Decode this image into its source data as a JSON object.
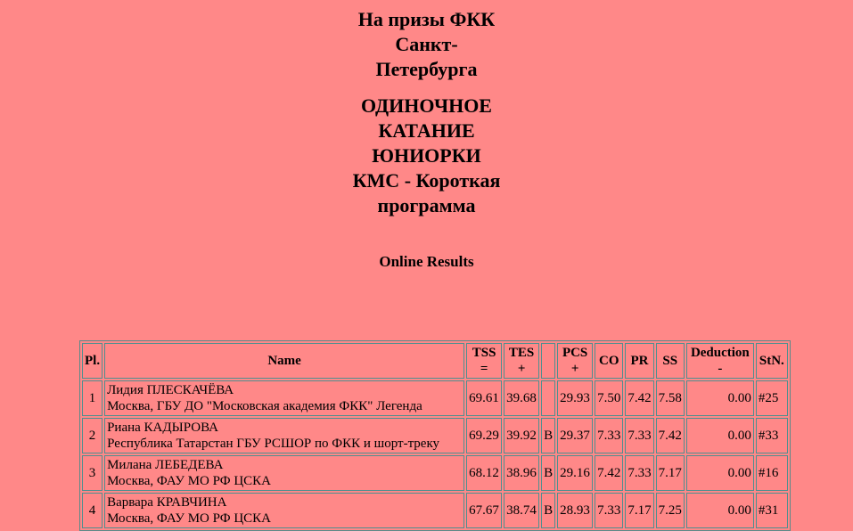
{
  "header": {
    "event_title": "На призы ФКК Санкт-Петербурга",
    "category_title": "ОДИНОЧНОЕ КАТАНИЕ ЮНИОРКИ КМС - Короткая программа",
    "subtitle": "Online Results"
  },
  "table": {
    "columns": [
      {
        "l1": "Pl.",
        "l2": ""
      },
      {
        "l1": "Name",
        "l2": ""
      },
      {
        "l1": "TSS",
        "l2": "="
      },
      {
        "l1": "TES",
        "l2": "+"
      },
      {
        "l1": "",
        "l2": ""
      },
      {
        "l1": "PCS",
        "l2": "+"
      },
      {
        "l1": "CO",
        "l2": ""
      },
      {
        "l1": "PR",
        "l2": ""
      },
      {
        "l1": "SS",
        "l2": ""
      },
      {
        "l1": "Deduction",
        "l2": "-"
      },
      {
        "l1": "StN.",
        "l2": ""
      }
    ],
    "rows": [
      {
        "pl": "1",
        "name": "Лидия ПЛЕСКАЧЁВА",
        "club": "Москва, ГБУ ДО \"Московская академия ФКК\" Легенда",
        "tss": "69.61",
        "tes": "39.68",
        "b": "",
        "pcs": "29.93",
        "co": "7.50",
        "pr": "7.42",
        "ss": "7.58",
        "ded": "0.00",
        "stn": "#25"
      },
      {
        "pl": "2",
        "name": "Риана КАДЫРОВА",
        "club": "Республика Татарстан ГБУ РСШОР по ФКК и шорт-треку",
        "tss": "69.29",
        "tes": "39.92",
        "b": "B",
        "pcs": "29.37",
        "co": "7.33",
        "pr": "7.33",
        "ss": "7.42",
        "ded": "0.00",
        "stn": "#33"
      },
      {
        "pl": "3",
        "name": "Милана ЛЕБЕДЕВА",
        "club": "Москва, ФАУ МО РФ ЦСКА",
        "tss": "68.12",
        "tes": "38.96",
        "b": "B",
        "pcs": "29.16",
        "co": "7.42",
        "pr": "7.33",
        "ss": "7.17",
        "ded": "0.00",
        "stn": "#16"
      },
      {
        "pl": "4",
        "name": "Варвара КРАВЧИНА",
        "club": "Москва, ФАУ МО РФ ЦСКА",
        "tss": "67.67",
        "tes": "38.74",
        "b": "B",
        "pcs": "28.93",
        "co": "7.33",
        "pr": "7.17",
        "ss": "7.25",
        "ded": "0.00",
        "stn": "#31"
      }
    ]
  }
}
